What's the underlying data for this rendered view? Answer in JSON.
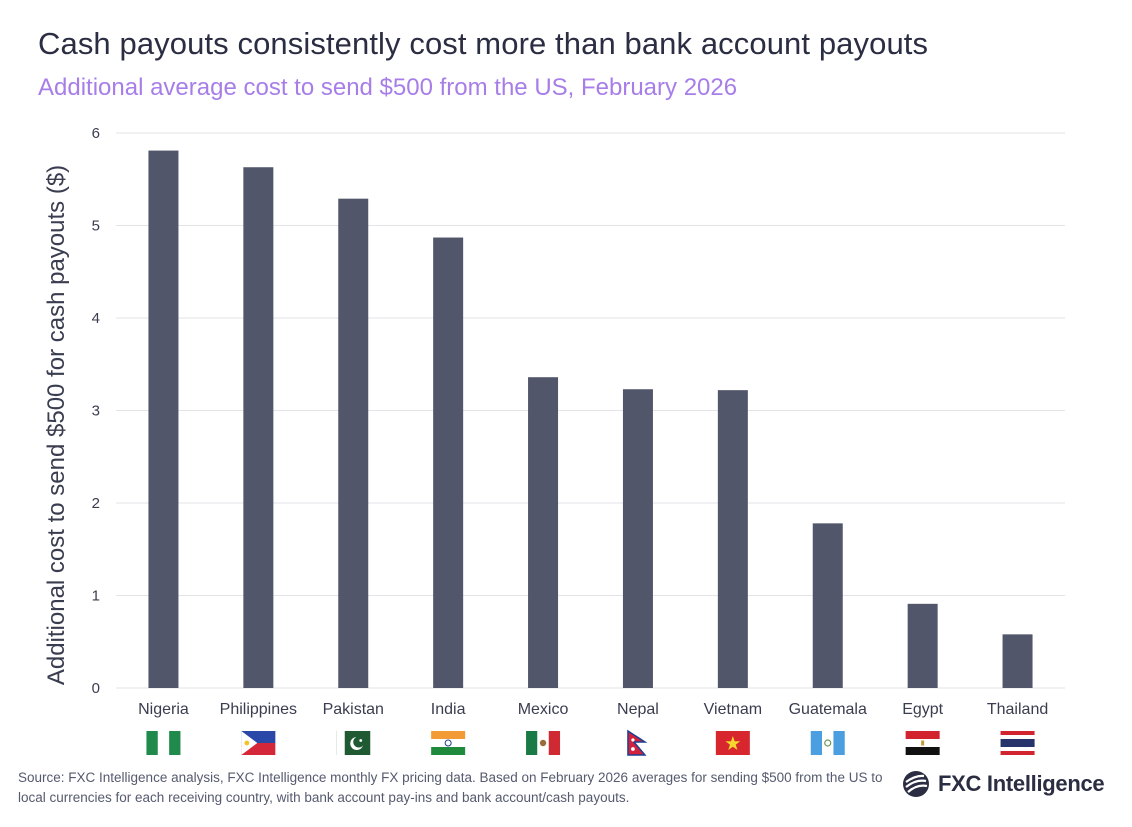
{
  "title": "Cash payouts consistently cost more than bank account payouts",
  "subtitle": "Additional average cost to send $500 from the US, February 2026",
  "footer": {
    "source": "Source: FXC Intelligence analysis, FXC Intelligence monthly FX pricing data. Based on February 2026 averages for sending $500 from the US to local currencies for each receiving country, with bank account pay-ins and bank account/cash payouts.",
    "logo_text": "FXC Intelligence"
  },
  "colors": {
    "bar": "#52566b",
    "title": "#2b2d42",
    "subtitle": "#a77ee8",
    "grid": "#e3e3e8",
    "text": "#3a3d4f"
  },
  "chart_data": {
    "type": "bar",
    "title": "Cash payouts consistently cost more than bank account payouts",
    "subtitle": "Additional average cost to send $500 from the US, February 2026",
    "xlabel": "",
    "ylabel": "Additional cost to send $500 for cash payouts ($)",
    "categories": [
      "Nigeria",
      "Philippines",
      "Pakistan",
      "India",
      "Mexico",
      "Nepal",
      "Vietnam",
      "Guatemala",
      "Egypt",
      "Thailand"
    ],
    "values": [
      5.81,
      5.63,
      5.29,
      4.87,
      3.36,
      3.23,
      3.22,
      1.78,
      0.91,
      0.58
    ],
    "yticks": [
      0,
      1,
      2,
      3,
      4,
      5,
      6
    ],
    "ylim": [
      0,
      6
    ],
    "grid": true,
    "legend": "none",
    "flag_icons": [
      "nigeria-flag-icon",
      "philippines-flag-icon",
      "pakistan-flag-icon",
      "india-flag-icon",
      "mexico-flag-icon",
      "nepal-flag-icon",
      "vietnam-flag-icon",
      "guatemala-flag-icon",
      "egypt-flag-icon",
      "thailand-flag-icon"
    ]
  }
}
